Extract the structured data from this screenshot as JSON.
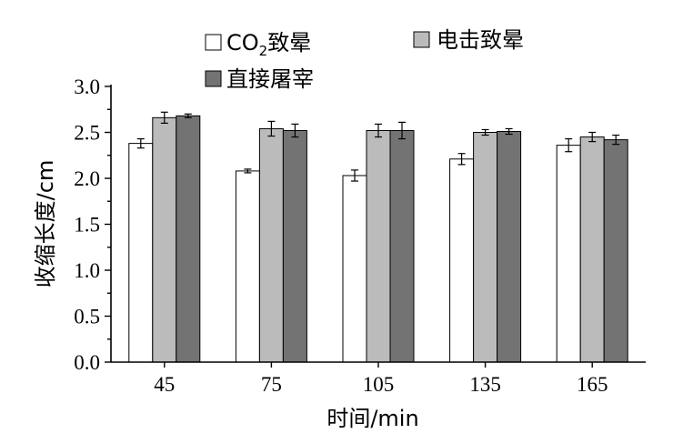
{
  "chart_data": {
    "type": "bar",
    "categories": [
      "45",
      "75",
      "105",
      "135",
      "165"
    ],
    "series": [
      {
        "name": "CO2致晕",
        "legend_main": "CO",
        "legend_sub": "2",
        "legend_rest": "致晕",
        "color": "#ffffff",
        "values": [
          2.38,
          2.08,
          2.03,
          2.21,
          2.36
        ],
        "errors": [
          0.05,
          0.02,
          0.06,
          0.06,
          0.07
        ]
      },
      {
        "name": "电击致晕",
        "color": "#bbbbbb",
        "values": [
          2.66,
          2.54,
          2.52,
          2.5,
          2.45
        ],
        "errors": [
          0.06,
          0.08,
          0.07,
          0.03,
          0.05
        ]
      },
      {
        "name": "直接屠宰",
        "color": "#737373",
        "values": [
          2.68,
          2.52,
          2.52,
          2.51,
          2.42
        ],
        "errors": [
          0.02,
          0.07,
          0.09,
          0.03,
          0.05
        ]
      }
    ],
    "xlabel": "时间/min",
    "ylabel": "收缩长度/cm",
    "ylim": [
      0,
      3.0
    ],
    "yticks": [
      0.0,
      0.5,
      1.0,
      1.5,
      2.0,
      2.5,
      3.0
    ],
    "ytick_labels": [
      "0.0",
      "0.5",
      "1.0",
      "1.5",
      "2.0",
      "2.5",
      "3.0"
    ],
    "legend_position": "top",
    "grid": false
  }
}
